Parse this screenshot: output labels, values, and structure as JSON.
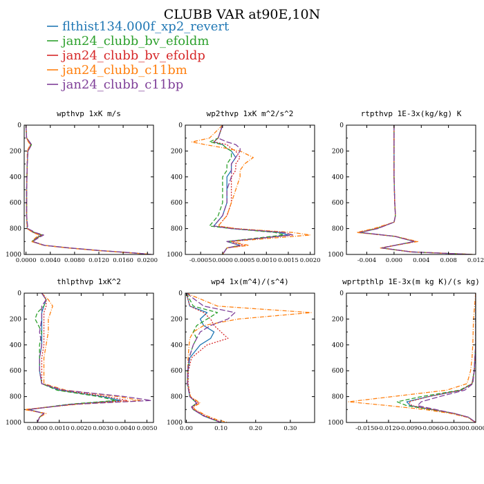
{
  "title": "CLUBB VAR at90E,10N",
  "legend": [
    {
      "name": "flthist134.000f_xp2_revert",
      "color": "#1f77b4",
      "dash": ""
    },
    {
      "name": "jan24_clubb_bv_efoldm",
      "color": "#2ca02c",
      "dash": "6,3"
    },
    {
      "name": "jan24_clubb_bv_efoldp",
      "color": "#d62728",
      "dash": "2,2"
    },
    {
      "name": "jan24_clubb_c11bm",
      "color": "#ff7f0e",
      "dash": "6,2,1,2"
    },
    {
      "name": "jan24_clubb_c11bp",
      "color": "#7f3f98",
      "dash": "8,3"
    }
  ],
  "chart_data": [
    {
      "type": "line",
      "title": "wpthvp   1xK m/s",
      "xlim": [
        -0.0003,
        0.021
      ],
      "ylim": [
        1000,
        0
      ],
      "xticks": [
        0.0,
        0.004,
        0.008,
        0.012,
        0.016,
        0.02
      ],
      "xtick_labels": [
        "0.0000",
        "0.0040",
        "0.0080",
        "0.0120",
        "0.0160",
        "0.0200"
      ],
      "yticks": [
        0,
        200,
        400,
        600,
        800,
        1000
      ],
      "ytick_labels": [
        "0",
        "200",
        "400",
        "600",
        "800",
        "1000"
      ],
      "y": [
        0,
        100,
        130,
        150,
        170,
        200,
        300,
        500,
        700,
        800,
        830,
        850,
        870,
        900,
        930,
        950,
        970,
        990,
        1000
      ],
      "series": [
        {
          "name": "flthist134.000f_xp2_revert",
          "values": [
            0,
            0.0001,
            0.0005,
            0.0008,
            0.0006,
            0.0003,
            0.0002,
            0.0001,
            0.0001,
            0.0002,
            0.0012,
            0.0025,
            0.0018,
            0.001,
            0.003,
            0.007,
            0.012,
            0.018,
            0.0205
          ]
        },
        {
          "name": "jan24_clubb_bv_efoldm",
          "values": [
            0,
            0.0001,
            0.0006,
            0.0009,
            0.0007,
            0.0003,
            0.0002,
            0.0001,
            0.0001,
            0.0002,
            0.0014,
            0.0027,
            0.0019,
            0.001,
            0.003,
            0.0072,
            0.0122,
            0.0182,
            0.0206
          ]
        },
        {
          "name": "jan24_clubb_bv_efoldp",
          "values": [
            0,
            0.0001,
            0.0005,
            0.0008,
            0.0006,
            0.0003,
            0.0002,
            0.0001,
            0.0001,
            0.0002,
            0.0013,
            0.0026,
            0.0019,
            0.0011,
            0.0031,
            0.0071,
            0.0121,
            0.0181,
            0.0205
          ]
        },
        {
          "name": "jan24_clubb_c11bm",
          "values": [
            0,
            0.0001,
            0.0004,
            0.0007,
            0.0005,
            0.0002,
            0.0002,
            0.0001,
            0.0001,
            0.0002,
            0.0011,
            0.0022,
            0.0016,
            0.0009,
            0.0029,
            0.0069,
            0.0119,
            0.0179,
            0.0208
          ]
        },
        {
          "name": "jan24_clubb_c11bp",
          "values": [
            0,
            0.0001,
            0.0006,
            0.0009,
            0.0007,
            0.0003,
            0.0002,
            0.0001,
            0.0001,
            0.0003,
            0.0015,
            0.0029,
            0.0021,
            0.0011,
            0.0031,
            0.0073,
            0.0123,
            0.0183,
            0.0207
          ]
        }
      ]
    },
    {
      "type": "line",
      "title": "wp2thvp   1xK m^2/s^2",
      "xlim": [
        -0.00085,
        0.0021
      ],
      "ylim": [
        1000,
        0
      ],
      "xticks": [
        -0.0005,
        0.0,
        0.0005,
        0.001,
        0.0015,
        0.002
      ],
      "xtick_labels": [
        "-0.0005",
        "0.0000",
        "0.0005",
        "0.0010",
        "0.0015",
        "0.0020"
      ],
      "yticks": [
        0,
        200,
        400,
        600,
        800,
        1000
      ],
      "ytick_labels": [
        "0",
        "200",
        "400",
        "600",
        "800",
        "1000"
      ],
      "y": [
        0,
        100,
        130,
        150,
        180,
        200,
        250,
        300,
        350,
        400,
        500,
        600,
        700,
        780,
        800,
        830,
        850,
        880,
        900,
        930,
        950,
        1000
      ],
      "series": [
        {
          "name": "flthist134.000f_xp2_revert",
          "values": [
            0,
            -0.0001,
            -0.0002,
            0.0,
            0.0001,
            0.0002,
            0.0003,
            0.0002,
            0.0002,
            0.0001,
            0.0001,
            0.0001,
            0.0,
            -0.0002,
            0.0002,
            0.0013,
            0.0015,
            0.0007,
            0.0001,
            0.0004,
            0.0001,
            0.0
          ]
        },
        {
          "name": "jan24_clubb_bv_efoldm",
          "values": [
            0,
            -0.0001,
            -0.0003,
            0.0,
            0.0001,
            0.0002,
            0.0002,
            0.0001,
            0.0001,
            0.0,
            0.0,
            0.0,
            -0.0001,
            -0.0003,
            0.0002,
            0.0012,
            0.0014,
            0.0006,
            0.0001,
            0.0004,
            0.0001,
            0.0
          ]
        },
        {
          "name": "jan24_clubb_bv_efoldp",
          "values": [
            0,
            -0.0001,
            -0.0002,
            0.0001,
            0.0002,
            0.0003,
            0.0004,
            0.0003,
            0.0003,
            0.0002,
            0.0002,
            0.0002,
            0.0001,
            -0.0001,
            0.0003,
            0.0014,
            0.0016,
            0.0007,
            0.0002,
            0.0005,
            0.0001,
            0.0
          ]
        },
        {
          "name": "jan24_clubb_c11bm",
          "values": [
            0,
            -0.0003,
            -0.0007,
            -0.0004,
            0.0001,
            0.0004,
            0.0007,
            0.0005,
            0.0004,
            0.0004,
            0.0003,
            0.0002,
            0.0001,
            -0.0001,
            0.0003,
            0.0016,
            0.002,
            0.0009,
            0.0002,
            0.0006,
            0.0001,
            0.0
          ]
        },
        {
          "name": "jan24_clubb_c11bp",
          "values": [
            0,
            -0.0001,
            0.0001,
            0.0003,
            0.0004,
            0.0004,
            0.0003,
            0.0002,
            0.0002,
            0.0002,
            0.0001,
            0.0001,
            0.0,
            -0.0002,
            0.0002,
            0.0014,
            0.0016,
            0.0007,
            0.0001,
            0.0004,
            0.0001,
            0.0
          ]
        }
      ]
    },
    {
      "type": "line",
      "title": "rtpthvp   1E-3x(kg/kg) K",
      "xlim": [
        -0.007,
        0.012
      ],
      "ylim": [
        1000,
        0
      ],
      "xticks": [
        -0.004,
        0.0,
        0.004,
        0.008,
        0.012
      ],
      "xtick_labels": [
        "-0.004",
        "0.000",
        "0.004",
        "0.008",
        "0.012"
      ],
      "yticks": [
        0,
        200,
        400,
        600,
        800,
        1000
      ],
      "ytick_labels": [
        "0",
        "200",
        "400",
        "600",
        "800",
        "1000"
      ],
      "y": [
        0,
        200,
        400,
        600,
        700,
        750,
        800,
        830,
        860,
        900,
        950,
        980,
        1000
      ],
      "series": [
        {
          "name": "flthist134.000f_xp2_revert",
          "values": [
            0,
            0,
            0,
            0.0001,
            0.0002,
            0,
            -0.0025,
            -0.005,
            0.0001,
            0.003,
            -0.0018,
            0.0025,
            0.0115
          ]
        },
        {
          "name": "jan24_clubb_bv_efoldm",
          "values": [
            0,
            0,
            0,
            0.0001,
            0.0002,
            0,
            -0.0026,
            -0.0052,
            0.0001,
            0.003,
            -0.0019,
            0.0025,
            0.0115
          ]
        },
        {
          "name": "jan24_clubb_bv_efoldp",
          "values": [
            0,
            0,
            0,
            0.0001,
            0.0002,
            0,
            -0.0026,
            -0.0052,
            0.0001,
            0.0031,
            -0.0019,
            0.0025,
            0.0115
          ]
        },
        {
          "name": "jan24_clubb_c11bm",
          "values": [
            0,
            0,
            0,
            0.0001,
            0.0002,
            0,
            -0.003,
            -0.0055,
            0.0002,
            0.0035,
            -0.002,
            0.0026,
            0.0116
          ]
        },
        {
          "name": "jan24_clubb_c11bp",
          "values": [
            0,
            0,
            0,
            0.0001,
            0.0002,
            0,
            -0.0024,
            -0.005,
            0.0001,
            0.003,
            -0.0018,
            0.0025,
            0.0115
          ]
        }
      ]
    },
    {
      "type": "line",
      "title": "thlpthvp   1xK^2",
      "xlim": [
        -0.0006,
        0.0053
      ],
      "ylim": [
        1000,
        0
      ],
      "xticks": [
        0.0,
        0.001,
        0.002,
        0.003,
        0.004,
        0.005
      ],
      "xtick_labels": [
        "0.0000",
        "0.0010",
        "0.0020",
        "0.0030",
        "0.0040",
        "0.0050"
      ],
      "yticks": [
        0,
        200,
        400,
        600,
        800,
        1000
      ],
      "ytick_labels": [
        "0",
        "200",
        "400",
        "600",
        "800",
        "1000"
      ],
      "y": [
        0,
        50,
        100,
        150,
        200,
        300,
        400,
        500,
        600,
        700,
        750,
        800,
        830,
        860,
        900,
        930,
        960,
        1000
      ],
      "series": [
        {
          "name": "flthist134.000f_xp2_revert",
          "values": [
            0.0002,
            0.0004,
            0.0003,
            0.0002,
            0.0002,
            0.0002,
            0.0002,
            0.0001,
            0.0001,
            0.0002,
            0.001,
            0.003,
            0.0038,
            0.0015,
            -0.0004,
            0.0003,
            0.0001,
            0.0
          ]
        },
        {
          "name": "jan24_clubb_bv_efoldm",
          "values": [
            0.0002,
            0.0004,
            0.0003,
            0.0,
            -0.0001,
            0.0002,
            0.0001,
            0.0001,
            0.0001,
            0.0002,
            0.0009,
            0.0028,
            0.0036,
            0.0014,
            -0.0004,
            0.0003,
            0.0001,
            0.0
          ]
        },
        {
          "name": "jan24_clubb_bv_efoldp",
          "values": [
            0.0002,
            0.0004,
            0.0004,
            0.0003,
            0.0003,
            0.0003,
            0.0003,
            0.0002,
            0.0002,
            0.0002,
            0.0011,
            0.0032,
            0.0041,
            0.0016,
            -0.0005,
            0.0003,
            0.0001,
            0.0
          ]
        },
        {
          "name": "jan24_clubb_c11bm",
          "values": [
            0.0002,
            0.0005,
            0.0007,
            0.0006,
            0.0005,
            0.0005,
            0.0004,
            0.0003,
            0.0003,
            0.0003,
            0.0013,
            0.0037,
            0.0047,
            0.0018,
            -0.0006,
            0.0004,
            0.0001,
            0.0
          ]
        },
        {
          "name": "jan24_clubb_c11bp",
          "values": [
            0.0002,
            0.0004,
            0.0002,
            0.0002,
            0.0002,
            0.0001,
            0.0002,
            0.0001,
            0.0001,
            0.0002,
            0.0012,
            0.004,
            0.0052,
            0.0016,
            -0.0004,
            0.0003,
            0.0001,
            0.0
          ]
        }
      ]
    },
    {
      "type": "line",
      "title": "wp4   1x(m^4)/(s^4)",
      "xlim": [
        -0.003,
        0.37
      ],
      "ylim": [
        1000,
        0
      ],
      "xticks": [
        0.0,
        0.1,
        0.2,
        0.3
      ],
      "xtick_labels": [
        "0.00",
        "0.10",
        "0.20",
        "0.30"
      ],
      "yticks": [
        0,
        200,
        400,
        600,
        800,
        1000
      ],
      "ytick_labels": [
        "0",
        "200",
        "400",
        "600",
        "800",
        "1000"
      ],
      "y": [
        0,
        100,
        150,
        200,
        250,
        300,
        350,
        400,
        500,
        600,
        700,
        800,
        850,
        880,
        900,
        950,
        980,
        1000
      ],
      "series": [
        {
          "name": "flthist134.000f_xp2_revert",
          "values": [
            0.0,
            0.01,
            0.06,
            0.04,
            0.05,
            0.08,
            0.07,
            0.04,
            0.01,
            0.005,
            0.004,
            0.01,
            0.03,
            0.015,
            0.02,
            0.05,
            0.08,
            0.1
          ]
        },
        {
          "name": "jan24_clubb_bv_efoldm",
          "values": [
            0.0,
            0.02,
            0.09,
            0.06,
            0.03,
            0.02,
            0.03,
            0.02,
            0.008,
            0.004,
            0.003,
            0.01,
            0.03,
            0.015,
            0.02,
            0.05,
            0.08,
            0.1
          ]
        },
        {
          "name": "jan24_clubb_bv_efoldp",
          "values": [
            0.0,
            0.01,
            0.05,
            0.07,
            0.08,
            0.1,
            0.12,
            0.06,
            0.015,
            0.006,
            0.005,
            0.012,
            0.035,
            0.018,
            0.022,
            0.055,
            0.085,
            0.1
          ]
        },
        {
          "name": "jan24_clubb_c11bm",
          "values": [
            0.0,
            0.09,
            0.36,
            0.15,
            0.05,
            0.02,
            0.01,
            0.008,
            0.005,
            0.004,
            0.003,
            0.012,
            0.04,
            0.02,
            0.025,
            0.06,
            0.09,
            0.12
          ]
        },
        {
          "name": "jan24_clubb_c11bp",
          "values": [
            0.0,
            0.05,
            0.14,
            0.12,
            0.07,
            0.04,
            0.03,
            0.02,
            0.008,
            0.004,
            0.003,
            0.01,
            0.03,
            0.015,
            0.02,
            0.05,
            0.08,
            0.1
          ]
        }
      ]
    },
    {
      "type": "line",
      "title": "wprtpthlp   1E-3x(m kg K)/(s kg)",
      "xlim": [
        -0.0178,
        0.0
      ],
      "ylim": [
        1000,
        0
      ],
      "xticks": [
        -0.015,
        -0.012,
        -0.009,
        -0.006,
        -0.003,
        0.0
      ],
      "xtick_labels": [
        "-0.0150",
        "-0.0120",
        "-0.0090",
        "-0.0060",
        "-0.0030",
        "0.0000"
      ],
      "yticks": [
        0,
        200,
        400,
        600,
        800,
        1000
      ],
      "ytick_labels": [
        "0",
        "200",
        "400",
        "600",
        "800",
        "1000"
      ],
      "y": [
        0,
        200,
        400,
        500,
        600,
        700,
        750,
        800,
        840,
        870,
        900,
        930,
        960,
        1000
      ],
      "series": [
        {
          "name": "flthist134.000f_xp2_revert",
          "values": [
            0,
            0,
            0,
            -0.0001,
            -0.0002,
            -0.0005,
            -0.002,
            -0.0065,
            -0.0095,
            -0.009,
            -0.006,
            -0.003,
            -0.001,
            0
          ]
        },
        {
          "name": "jan24_clubb_bv_efoldm",
          "values": [
            0,
            0,
            0,
            -0.0001,
            -0.0002,
            -0.0005,
            -0.0022,
            -0.0075,
            -0.0108,
            -0.0095,
            -0.0062,
            -0.003,
            -0.001,
            0
          ]
        },
        {
          "name": "jan24_clubb_bv_efoldp",
          "values": [
            0,
            0,
            0,
            -0.0001,
            -0.0002,
            -0.0005,
            -0.002,
            -0.0065,
            -0.0092,
            -0.0088,
            -0.006,
            -0.003,
            -0.001,
            0
          ]
        },
        {
          "name": "jan24_clubb_c11bm",
          "values": [
            0,
            -0.0003,
            -0.0004,
            -0.0005,
            -0.0007,
            -0.0012,
            -0.004,
            -0.0115,
            -0.0175,
            -0.012,
            -0.007,
            -0.0035,
            -0.0012,
            0
          ]
        },
        {
          "name": "jan24_clubb_c11bp",
          "values": [
            0,
            0,
            0,
            -0.0001,
            -0.0002,
            -0.0004,
            -0.0015,
            -0.005,
            -0.0075,
            -0.008,
            -0.0055,
            -0.003,
            -0.001,
            0
          ]
        }
      ]
    }
  ]
}
